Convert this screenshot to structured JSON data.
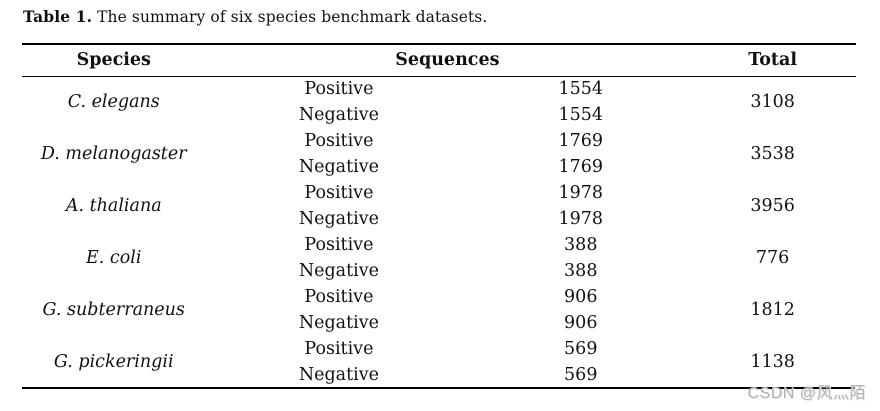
{
  "caption": {
    "label": "Table 1.",
    "text": "The summary of six species benchmark datasets."
  },
  "table": {
    "headers": {
      "species": "Species",
      "sequences": "Sequences",
      "total": "Total"
    },
    "rows": [
      {
        "species": "C. elegans",
        "positive_label": "Positive",
        "positive_count": "1554",
        "negative_label": "Negative",
        "negative_count": "1554",
        "total": "3108"
      },
      {
        "species": "D. melanogaster",
        "positive_label": "Positive",
        "positive_count": "1769",
        "negative_label": "Negative",
        "negative_count": "1769",
        "total": "3538"
      },
      {
        "species": "A. thaliana",
        "positive_label": "Positive",
        "positive_count": "1978",
        "negative_label": "Negative",
        "negative_count": "1978",
        "total": "3956"
      },
      {
        "species": "E. coli",
        "positive_label": "Positive",
        "positive_count": "388",
        "negative_label": "Negative",
        "negative_count": "388",
        "total": "776"
      },
      {
        "species": "G. subterraneus",
        "positive_label": "Positive",
        "positive_count": "906",
        "negative_label": "Negative",
        "negative_count": "906",
        "total": "1812"
      },
      {
        "species": "G. pickeringii",
        "positive_label": "Positive",
        "positive_count": "569",
        "negative_label": "Negative",
        "negative_count": "569",
        "total": "1138"
      }
    ]
  },
  "watermark": {
    "text": "CSDN @风灬陌"
  }
}
